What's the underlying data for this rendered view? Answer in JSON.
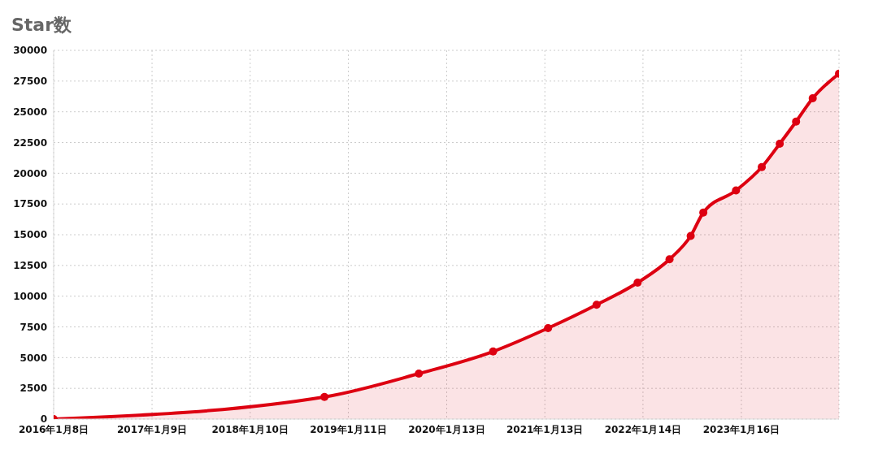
{
  "chart_data": {
    "type": "area",
    "title": "Star数",
    "x": [
      "2016-01-08",
      "2018-10-14",
      "2019-10-01",
      "2020-07-04",
      "2021-01-25",
      "2021-07-25",
      "2021-12-25",
      "2022-04-23",
      "2022-07-11",
      "2022-08-27",
      "2022-12-27",
      "2023-04-02",
      "2023-06-08",
      "2023-08-08",
      "2023-10-09",
      "2024-01-15"
    ],
    "series": [
      {
        "color": "#dd0011",
        "values": [
          0,
          1800,
          3700,
          5500,
          7400,
          9300,
          11100,
          13000,
          14900,
          16800,
          18600,
          20500,
          22400,
          24200,
          26100,
          28100
        ]
      }
    ],
    "xlim": [
      "2016-01-08",
      "2024-01-15"
    ],
    "xticks": [
      {
        "value": "2016-01-08",
        "label": "2016年1月8日"
      },
      {
        "value": "2017-01-09",
        "label": "2017年1月9日"
      },
      {
        "value": "2018-01-10",
        "label": "2018年1月10日"
      },
      {
        "value": "2019-01-11",
        "label": "2019年1月11日"
      },
      {
        "value": "2020-01-13",
        "label": "2020年1月13日"
      },
      {
        "value": "2021-01-13",
        "label": "2021年1月13日"
      },
      {
        "value": "2022-01-14",
        "label": "2022年1月14日"
      },
      {
        "value": "2023-01-16",
        "label": "2023年1月16日"
      }
    ],
    "ylim": [
      0,
      30000
    ],
    "yticks": [
      0,
      2500,
      5000,
      7500,
      10000,
      12500,
      15000,
      17500,
      20000,
      22500,
      25000,
      27500,
      30000
    ],
    "grid": true,
    "marker": "circle",
    "line_style": "solid"
  }
}
